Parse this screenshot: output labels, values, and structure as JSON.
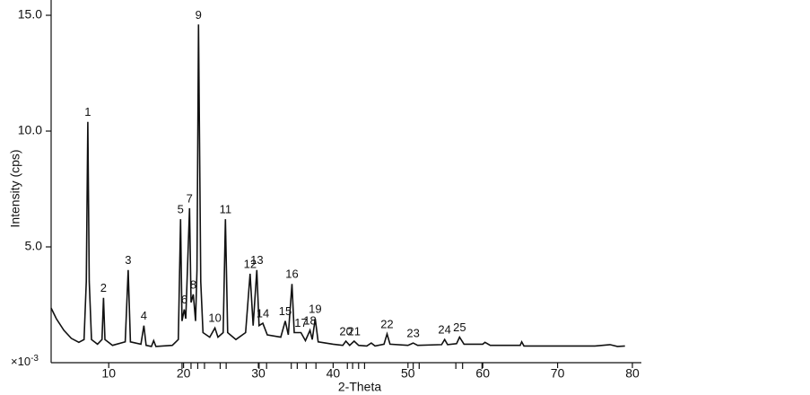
{
  "chart_data": {
    "type": "line",
    "x_label": "2-Theta",
    "y_label": "Intensity (cps)",
    "y_multiplier": {
      "base": "×10",
      "exponent": "-3"
    },
    "xlim": [
      2.3,
      81.2
    ],
    "ylim": [
      0,
      15.66
    ],
    "xticks": [
      10,
      20,
      30,
      40,
      50,
      60,
      70,
      80
    ],
    "yticks": [
      {
        "value": 5,
        "label": "5.0"
      },
      {
        "value": 10,
        "label": "10.0"
      },
      {
        "value": 15,
        "label": "15.0"
      }
    ],
    "color": "#111111",
    "x": [
      2.3,
      3,
      4,
      5,
      6,
      6.7,
      7.0,
      7.2,
      7.4,
      7.7,
      8.5,
      9.1,
      9.3,
      9.5,
      10.5,
      12.2,
      12.6,
      12.9,
      14.3,
      14.7,
      15.0,
      15.7,
      16.0,
      16.3,
      18.5,
      19.3,
      19.6,
      19.8,
      20.1,
      20.3,
      20.8,
      21.0,
      21.3,
      21.6,
      21.8,
      22.0,
      22.3,
      22.6,
      23.5,
      24.2,
      24.6,
      25.3,
      25.6,
      25.9,
      27,
      28.3,
      28.9,
      29.3,
      29.8,
      30.1,
      30.6,
      31.2,
      33.0,
      33.6,
      34.0,
      34.5,
      34.8,
      35.7,
      36.3,
      36.9,
      37.2,
      37.6,
      38.0,
      40,
      41.3,
      41.7,
      42.2,
      42.8,
      43.4,
      44.5,
      45.1,
      45.6,
      46.8,
      47.2,
      47.6,
      50,
      50.7,
      51.3,
      54.5,
      54.9,
      55.3,
      56.5,
      56.9,
      57.5,
      60,
      60.3,
      61,
      65,
      65.2,
      65.5,
      70,
      75,
      77,
      78,
      79
    ],
    "values": [
      2.36,
      1.9,
      1.4,
      1.05,
      0.88,
      1.0,
      3.5,
      10.4,
      3.5,
      1.0,
      0.8,
      1.0,
      2.8,
      1.0,
      0.75,
      0.9,
      4.0,
      0.9,
      0.8,
      1.6,
      0.75,
      0.7,
      0.95,
      0.7,
      0.75,
      1.0,
      6.2,
      1.8,
      2.3,
      1.9,
      6.67,
      2.6,
      2.95,
      1.8,
      4,
      14.6,
      3.5,
      1.3,
      1.1,
      1.5,
      1.1,
      1.3,
      6.2,
      1.3,
      1.0,
      1.3,
      3.84,
      1.6,
      4.0,
      1.6,
      1.7,
      1.2,
      1.1,
      1.8,
      1.2,
      3.4,
      1.3,
      1.3,
      0.95,
      1.4,
      1.0,
      1.9,
      0.9,
      0.8,
      0.75,
      0.93,
      0.75,
      0.93,
      0.75,
      0.72,
      0.85,
      0.72,
      0.8,
      1.24,
      0.8,
      0.75,
      0.85,
      0.75,
      0.78,
      1.0,
      0.78,
      0.82,
      1.1,
      0.8,
      0.8,
      0.88,
      0.75,
      0.75,
      0.9,
      0.72,
      0.72,
      0.72,
      0.78,
      0.7,
      0.72
    ],
    "peaks": [
      {
        "label": "1",
        "x": 7.2,
        "y": 10.4
      },
      {
        "label": "2",
        "x": 9.3,
        "y": 2.8
      },
      {
        "label": "3",
        "x": 12.6,
        "y": 4.0
      },
      {
        "label": "4",
        "x": 14.7,
        "y": 1.6
      },
      {
        "label": "5",
        "x": 19.6,
        "y": 6.2
      },
      {
        "label": "6",
        "x": 20.1,
        "y": 2.3
      },
      {
        "label": "7",
        "x": 20.8,
        "y": 6.67
      },
      {
        "label": "8",
        "x": 21.3,
        "y": 2.95
      },
      {
        "label": "9",
        "x": 22.0,
        "y": 14.6
      },
      {
        "label": "10",
        "x": 24.2,
        "y": 1.5
      },
      {
        "label": "11",
        "x": 25.6,
        "y": 6.2
      },
      {
        "label": "12",
        "x": 28.9,
        "y": 3.84
      },
      {
        "label": "13",
        "x": 29.8,
        "y": 4.0
      },
      {
        "label": "14",
        "x": 30.6,
        "y": 1.7
      },
      {
        "label": "15",
        "x": 33.6,
        "y": 1.8
      },
      {
        "label": "16",
        "x": 34.5,
        "y": 3.4
      },
      {
        "label": "17",
        "x": 35.7,
        "y": 1.3
      },
      {
        "label": "18",
        "x": 36.9,
        "y": 1.4
      },
      {
        "label": "19",
        "x": 37.6,
        "y": 1.9
      },
      {
        "label": "20",
        "x": 41.7,
        "y": 0.93
      },
      {
        "label": "21",
        "x": 42.8,
        "y": 0.93
      },
      {
        "label": "22",
        "x": 47.2,
        "y": 1.24
      },
      {
        "label": "23",
        "x": 50.7,
        "y": 0.85
      },
      {
        "label": "24",
        "x": 54.9,
        "y": 1.0
      },
      {
        "label": "25",
        "x": 56.9,
        "y": 1.1
      }
    ],
    "reference_positions": [
      19.8,
      21.0,
      21.9,
      22.8,
      24.9,
      25.7,
      30.1,
      31.1,
      34.4,
      35.2,
      36.4,
      37.7,
      41.9,
      42.6,
      43.4,
      44.2,
      50.7,
      51.5,
      56.4,
      57.3,
      59.9
    ]
  }
}
